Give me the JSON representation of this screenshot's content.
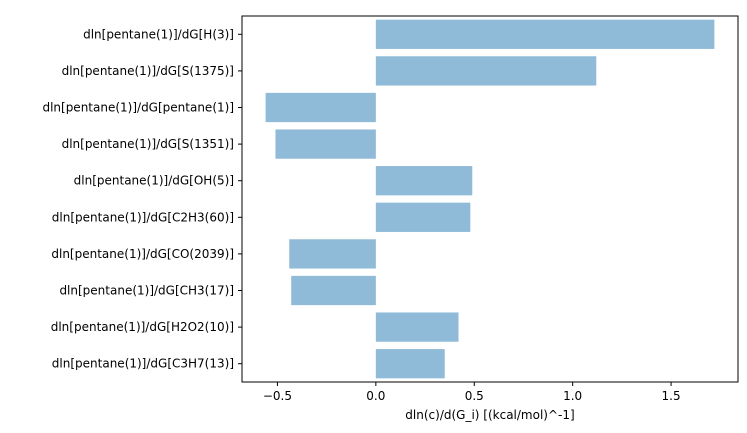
{
  "chart_data": {
    "type": "bar",
    "orientation": "horizontal",
    "categories": [
      "dln[pentane(1)]/dG[H(3)]",
      "dln[pentane(1)]/dG[S(1375)]",
      "dln[pentane(1)]/dG[pentane(1)]",
      "dln[pentane(1)]/dG[S(1351)]",
      "dln[pentane(1)]/dG[OH(5)]",
      "dln[pentane(1)]/dG[C2H3(60)]",
      "dln[pentane(1)]/dG[CO(2039)]",
      "dln[pentane(1)]/dG[CH3(17)]",
      "dln[pentane(1)]/dG[H2O2(10)]",
      "dln[pentane(1)]/dG[C3H7(13)]"
    ],
    "values": [
      1.72,
      1.12,
      -0.56,
      -0.51,
      0.49,
      0.48,
      -0.44,
      -0.43,
      0.42,
      0.35
    ],
    "title": "",
    "xlabel": "dln(c)/d(G_i) [(kcal/mol)^-1]",
    "ylabel": "",
    "xlim": [
      -0.68,
      1.84
    ],
    "xticks": [
      -0.5,
      0.0,
      0.5,
      1.0,
      1.5
    ],
    "xtick_labels": [
      "−0.5",
      "0.0",
      "0.5",
      "1.0",
      "1.5"
    ],
    "bar_color": "#8fbbd9",
    "grid": false,
    "legend": "none"
  }
}
